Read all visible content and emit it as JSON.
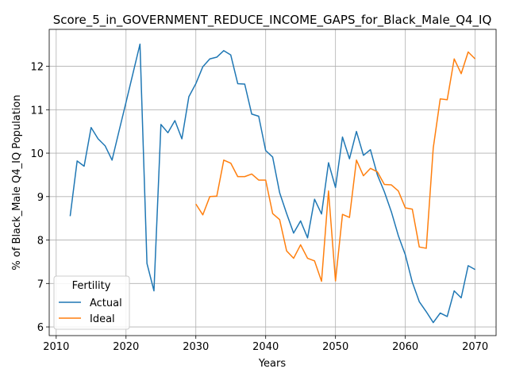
{
  "chart_data": {
    "type": "line",
    "title": "Score_5_in_GOVERNMENT_REDUCE_INCOME_GAPS_for_Black_Male_Q4_IQ",
    "xlabel": "Years",
    "ylabel": "% of Black_Male Q4_IQ Population",
    "xlim": [
      2009,
      2073
    ],
    "ylim": [
      5.8,
      12.85
    ],
    "xticks": [
      2010,
      2020,
      2030,
      2040,
      2050,
      2060,
      2070
    ],
    "yticks": [
      6,
      7,
      8,
      9,
      10,
      11,
      12
    ],
    "grid": true,
    "legend": {
      "title": "Fertility",
      "placement": "lower-left"
    },
    "series": [
      {
        "name": "Actual",
        "color": "#1f77b4",
        "x": [
          2012,
          2013,
          2014,
          2015,
          2016,
          2017,
          2018,
          2019,
          2020,
          2021,
          2022,
          2023,
          2024,
          2025,
          2026,
          2027,
          2028,
          2029,
          2030,
          2031,
          2032,
          2033,
          2034,
          2035,
          2036,
          2037,
          2038,
          2039,
          2040,
          2041,
          2042,
          2043,
          2044,
          2045,
          2046,
          2047,
          2048,
          2049,
          2050,
          2051,
          2052,
          2053,
          2054,
          2055,
          2056,
          2057,
          2058,
          2059,
          2060,
          2061,
          2062,
          2063,
          2064,
          2065,
          2066,
          2067,
          2068,
          2069,
          2070
        ],
        "y": [
          8.55,
          9.82,
          9.7,
          10.59,
          10.33,
          10.17,
          9.84,
          10.51,
          11.17,
          11.84,
          12.51,
          7.46,
          6.83,
          10.66,
          10.47,
          10.75,
          10.33,
          11.3,
          11.6,
          11.99,
          12.17,
          12.21,
          12.36,
          12.26,
          11.6,
          11.59,
          10.9,
          10.85,
          10.06,
          9.91,
          9.09,
          8.61,
          8.16,
          8.44,
          8.05,
          8.94,
          8.6,
          9.78,
          9.21,
          10.37,
          9.87,
          10.5,
          9.95,
          10.08,
          9.5,
          9.11,
          8.65,
          8.1,
          7.66,
          7.03,
          6.58,
          6.35,
          6.1,
          6.32,
          6.24,
          6.83,
          6.67,
          7.41,
          7.32
        ]
      },
      {
        "name": "Ideal",
        "color": "#ff7f0e",
        "x": [
          2030,
          2031,
          2032,
          2033,
          2034,
          2035,
          2036,
          2037,
          2038,
          2039,
          2040,
          2041,
          2042,
          2043,
          2044,
          2045,
          2046,
          2047,
          2048,
          2049,
          2050,
          2051,
          2052,
          2053,
          2054,
          2055,
          2056,
          2057,
          2058,
          2059,
          2060,
          2061,
          2062,
          2063,
          2064,
          2065,
          2066,
          2067,
          2068,
          2069,
          2070
        ],
        "y": [
          8.83,
          8.58,
          9.0,
          9.01,
          9.84,
          9.77,
          9.46,
          9.46,
          9.52,
          9.38,
          9.38,
          8.61,
          8.47,
          7.75,
          7.58,
          7.89,
          7.58,
          7.52,
          7.05,
          9.13,
          7.06,
          8.59,
          8.52,
          9.84,
          9.48,
          9.65,
          9.57,
          9.28,
          9.27,
          9.13,
          8.74,
          8.71,
          7.84,
          7.81,
          10.12,
          11.25,
          11.23,
          12.17,
          11.83,
          12.33,
          12.17
        ]
      }
    ]
  }
}
